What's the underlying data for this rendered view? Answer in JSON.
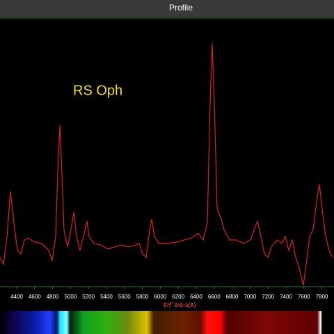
{
  "chart_data": {
    "type": "line",
    "title": "Profile",
    "annotation": "RS Oph",
    "xlabel": "ｵﾝｸﾞｽﾄﾛｰﾑ(A)",
    "color": "#e02020",
    "x": [
      4214,
      4253,
      4292,
      4330,
      4369,
      4408,
      4447,
      4485,
      4524,
      4602,
      4679,
      4757,
      4795,
      4834,
      4857,
      4881,
      4904,
      4927,
      4966,
      5005,
      5036,
      5067,
      5105,
      5144,
      5183,
      5206,
      5261,
      5338,
      5416,
      5493,
      5571,
      5648,
      5726,
      5764,
      5803,
      5842,
      5881,
      5904,
      5935,
      5981,
      6074,
      6191,
      6268,
      6346,
      6423,
      6478,
      6524,
      6555,
      6578,
      6602,
      6633,
      6679,
      6710,
      6772,
      6850,
      6927,
      7005,
      7044,
      7082,
      7121,
      7160,
      7199,
      7237,
      7299,
      7354,
      7392,
      7431,
      7470,
      7509,
      7547,
      7594,
      7625,
      7664,
      7702,
      7741,
      7772,
      7803,
      7842,
      7881,
      7919
    ],
    "values": [
      10.9,
      8.3,
      18.7,
      35.5,
      23.8,
      13.5,
      12.2,
      17.4,
      18.1,
      16.6,
      16.1,
      13.5,
      9.6,
      18.7,
      42.0,
      60.1,
      42.0,
      21.2,
      14.8,
      21.2,
      27.7,
      18.7,
      13.5,
      18.7,
      24.4,
      18.7,
      16.1,
      15.5,
      14.0,
      14.8,
      15.5,
      14.8,
      15.5,
      16.1,
      12.2,
      10.9,
      21.2,
      25.1,
      18.7,
      16.1,
      16.1,
      16.6,
      17.4,
      18.1,
      19.9,
      17.4,
      23.8,
      67.9,
      90.7,
      67.9,
      29.0,
      25.1,
      21.2,
      17.4,
      17.4,
      16.1,
      17.4,
      21.2,
      24.4,
      18.7,
      12.2,
      10.9,
      14.8,
      17.4,
      16.1,
      18.7,
      13.5,
      17.4,
      10.9,
      7.0,
      0.5,
      8.3,
      18.7,
      21.2,
      31.6,
      38.1,
      29.0,
      18.7,
      13.5,
      10.9
    ],
    "xlim": [
      4214,
      7935
    ],
    "ylim": [
      0,
      100
    ],
    "xticks": [
      4400,
      4600,
      4800,
      5000,
      5200,
      5400,
      5600,
      5800,
      6000,
      6200,
      6400,
      6600,
      6800,
      7000,
      7200,
      7400,
      7600,
      7800
    ]
  }
}
